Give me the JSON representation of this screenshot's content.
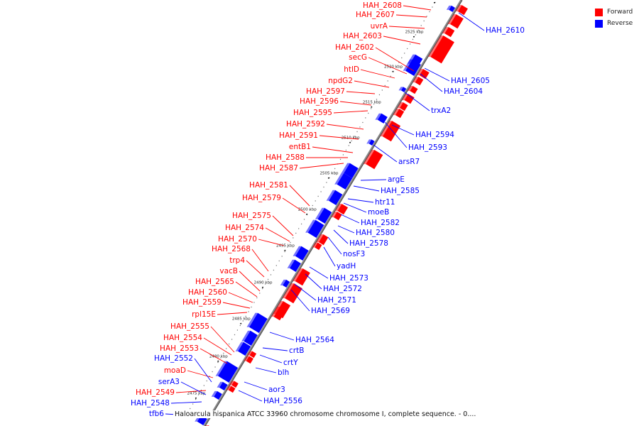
{
  "title": "Haloarcula hispanica ATCC 33960 chromosome chromosome I, complete sequence. - 0....",
  "legend": [
    {
      "label": "Forward",
      "color": "#ff0000"
    },
    {
      "label": "Reverse",
      "color": "#0000ff"
    }
  ],
  "colors": {
    "forward": "#ff0000",
    "reverse": "#0000ff",
    "backbone": "#888888"
  },
  "ticks": [
    "2530 kbp",
    "2525 kbp",
    "2520 kbp",
    "2515 kbp",
    "2510 kbp",
    "2505 kbp",
    "2500 kbp",
    "2495 kbp",
    "2490 kbp",
    "2485 kbp",
    "2480 kbp",
    "2475 kbp"
  ],
  "forward_genes": [
    "HAH_2608",
    "HAH_2607",
    "uvrA",
    "HAH_2603",
    "HAH_2602",
    "secG",
    "htlD",
    "npdG2",
    "HAH_2597",
    "HAH_2596",
    "HAH_2595",
    "HAH_2592",
    "HAH_2591",
    "entB1",
    "HAH_2588",
    "HAH_2587",
    "HAH_2581",
    "HAH_2579",
    "HAH_2575",
    "HAH_2574",
    "HAH_2570",
    "HAH_2568",
    "trp4",
    "vacB",
    "HAH_2565",
    "HAH_2560",
    "HAH_2559",
    "rpl15E",
    "HAH_2555",
    "HAH_2554",
    "HAH_2553",
    "moaD",
    "HAH_2549"
  ],
  "reverse_genes_left": [
    "HAH_2552",
    "serA3",
    "HAH_2548",
    "tfb6"
  ],
  "reverse_genes_right": [
    "HAH_2610",
    "HAH_2605",
    "HAH_2604",
    "trxA2",
    "HAH_2594",
    "HAH_2593",
    "arsR7",
    "argE",
    "HAH_2585",
    "htr11",
    "moeB",
    "HAH_2582",
    "HAH_2580",
    "HAH_2578",
    "nosF3",
    "yadH",
    "HAH_2573",
    "HAH_2572",
    "HAH_2571",
    "HAH_2569",
    "HAH_2564",
    "crtB",
    "crtY",
    "blh",
    "aor3",
    "HAH_2556"
  ]
}
